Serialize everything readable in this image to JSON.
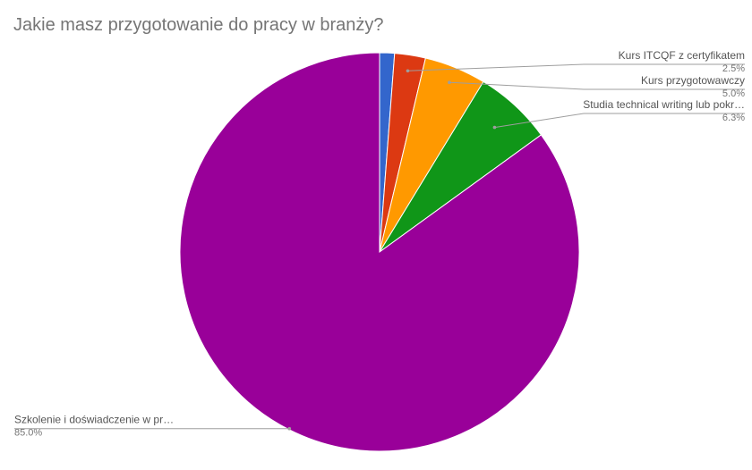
{
  "title": "Jakie masz przygotowanie do pracy w branży?",
  "chart_data": {
    "type": "pie",
    "title": "Jakie masz przygotowanie do pracy w branży?",
    "start_angle_deg": 0,
    "direction": "clockwise",
    "slices": [
      {
        "label": "",
        "value": 1.2,
        "value_label": "",
        "color": "#3366cc"
      },
      {
        "label": "Kurs ITCQF z certyfikatem",
        "value": 2.5,
        "value_label": "2.5%",
        "color": "#dc3912"
      },
      {
        "label": "Kurs przygotowawczy",
        "value": 5.0,
        "value_label": "5.0%",
        "color": "#ff9900"
      },
      {
        "label": "Studia technical writing lub pokr…",
        "value": 6.3,
        "value_label": "6.3%",
        "color": "#109618"
      },
      {
        "label": "Szkolenie i doświadczenie w pr…",
        "value": 85.0,
        "value_label": "85.0%",
        "color": "#990099"
      }
    ]
  },
  "colors": {
    "title": "#757575",
    "label": "#555555",
    "value": "#757575",
    "leader": "#9e9e9e"
  }
}
